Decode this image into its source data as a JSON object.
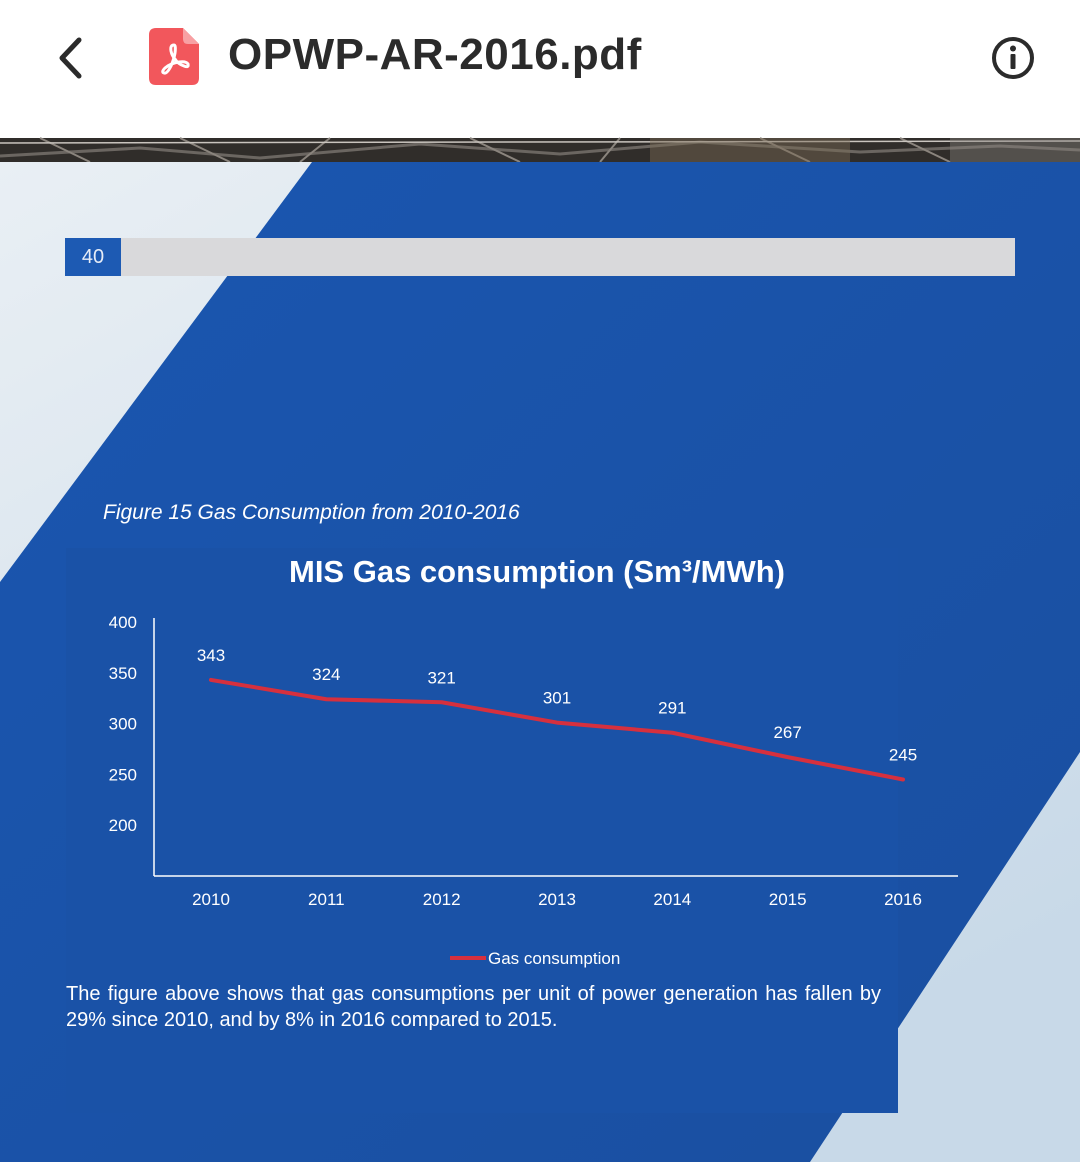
{
  "appbar": {
    "title": "OPWP-AR-2016.pdf",
    "back_icon": "chevron-left-icon",
    "file_icon": "pdf-file-icon",
    "info_icon": "info-icon"
  },
  "page": {
    "page_number": "40",
    "figure_caption": "Figure 15 Gas Consumption from 2010-2016",
    "body_text": "The figure above shows that gas consumptions per unit of power generation has fallen by 29% since 2010, and by 8% in 2016 compared to 2015.",
    "colors": {
      "brand_blue": "#1a52a7",
      "series_red": "#d6303e",
      "header_grey": "#d9d9db"
    }
  },
  "chart_data": {
    "type": "line",
    "title": "MIS Gas consumption (Sm³/MWh)",
    "xlabel": "",
    "ylabel": "",
    "categories": [
      "2010",
      "2011",
      "2012",
      "2013",
      "2014",
      "2015",
      "2016"
    ],
    "series": [
      {
        "name": "Gas consumption",
        "values": [
          343,
          324,
          321,
          301,
          291,
          267,
          245
        ],
        "color": "#d6303e"
      }
    ],
    "data_labels": [
      "343",
      "324",
      "321",
      "301",
      "291",
      "267",
      "245"
    ],
    "y_ticks": [
      "400",
      "350",
      "300",
      "250",
      "200"
    ],
    "ylim": [
      150,
      400
    ],
    "grid": false,
    "legend_position": "bottom"
  }
}
